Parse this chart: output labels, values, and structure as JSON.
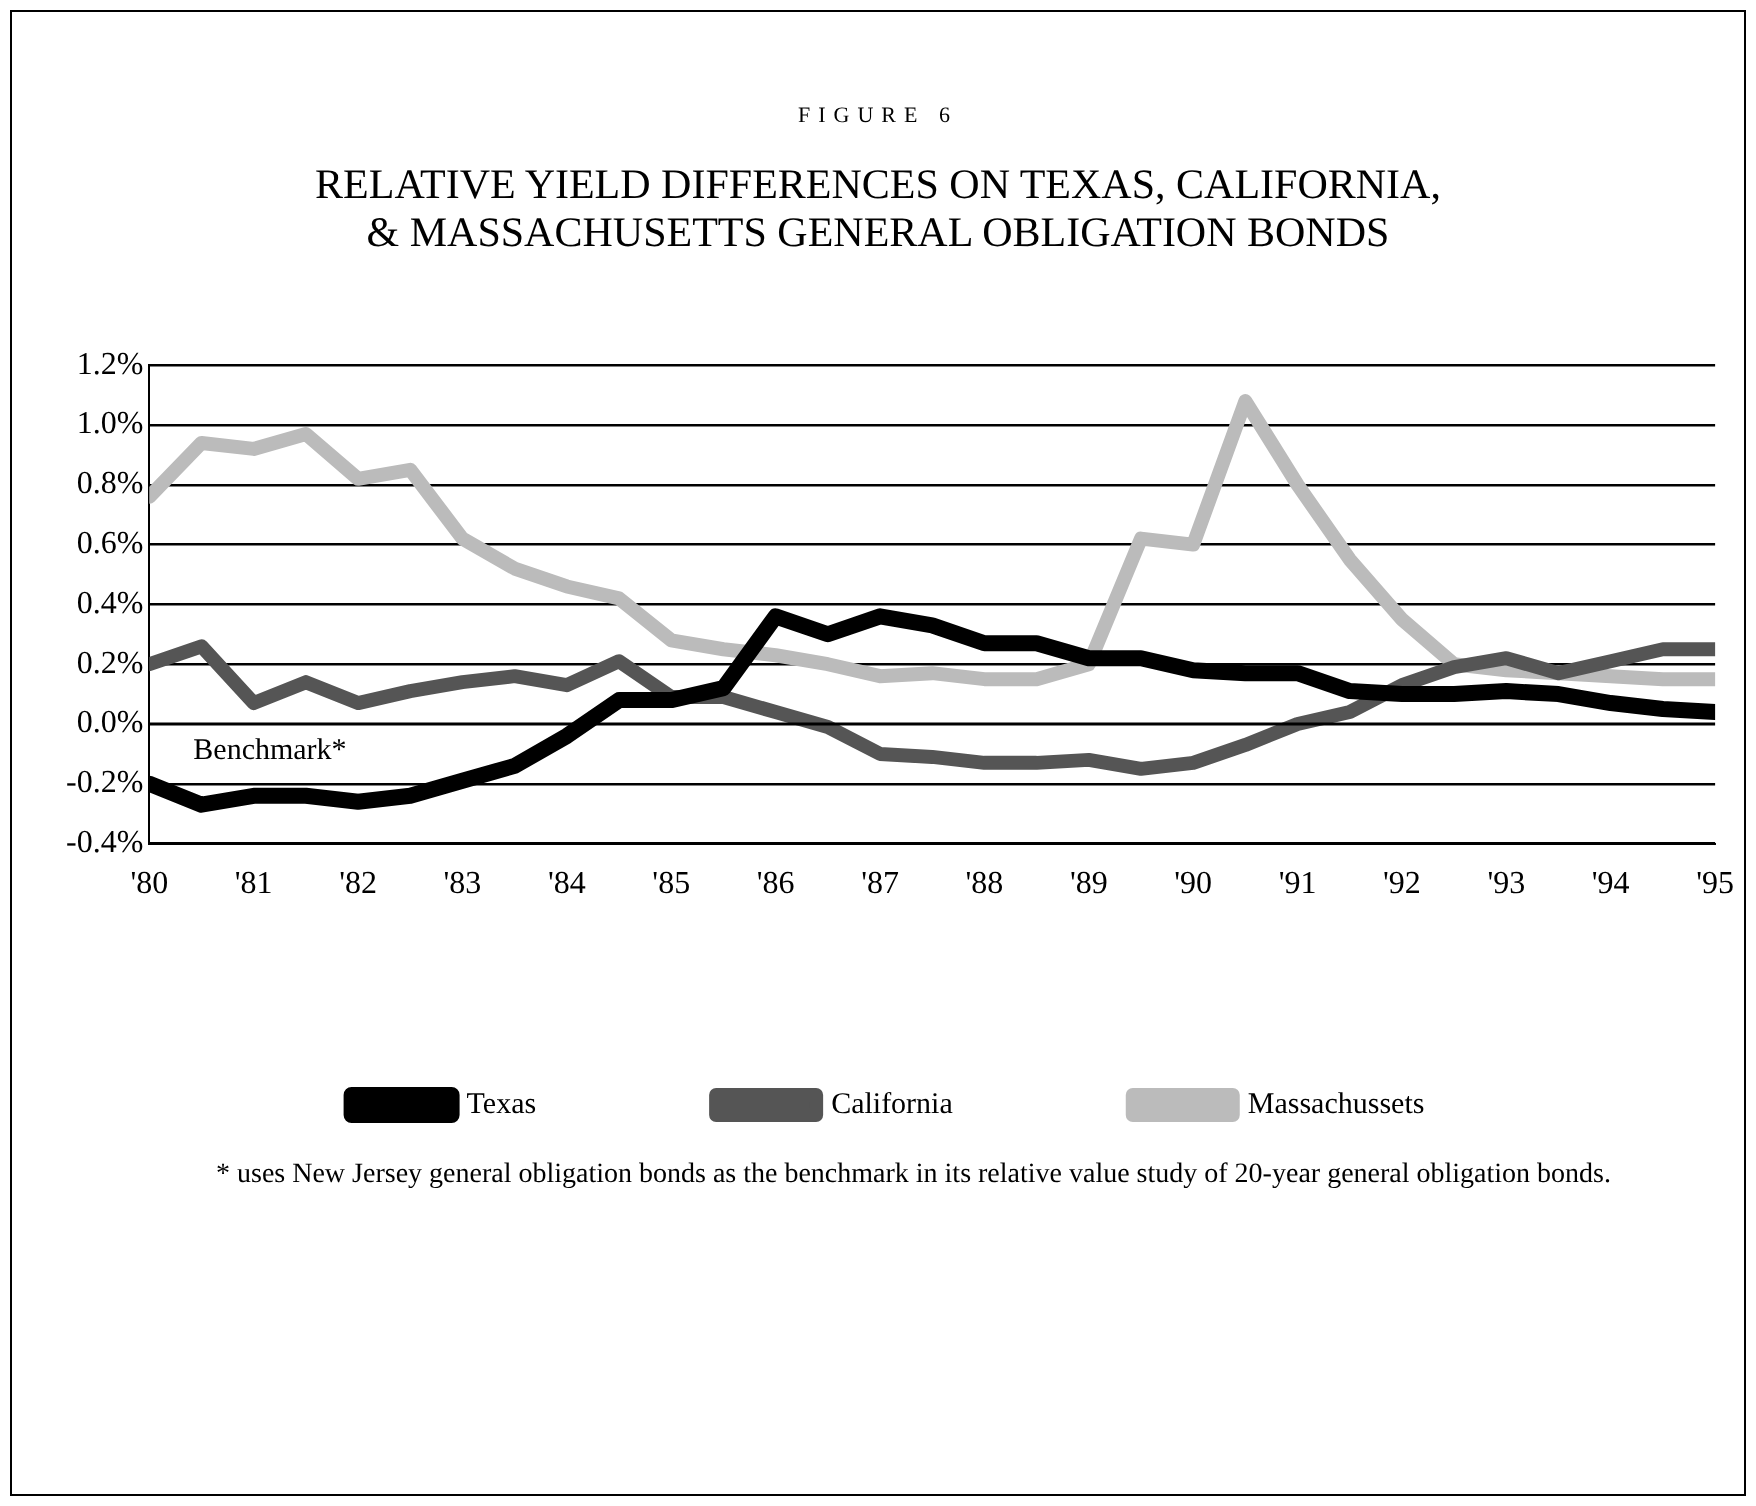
{
  "chart_data": {
    "type": "line",
    "subtitle": "FIGURE 6",
    "title": "RELATIVE YIELD DIFFERENCES ON TEXAS, CALIFORNIA,\n& MASSACHUSETTS GENERAL OBLIGATION BONDS",
    "x": [
      1980,
      1980.5,
      1981,
      1981.5,
      1982,
      1982.5,
      1983,
      1983.5,
      1984,
      1984.5,
      1985,
      1985.5,
      1986,
      1986.5,
      1987,
      1987.5,
      1988,
      1988.5,
      1989,
      1989.5,
      1990,
      1990.5,
      1991,
      1991.5,
      1992,
      1992.5,
      1993,
      1993.5,
      1994,
      1994.5,
      1995
    ],
    "series": [
      {
        "name": "Texas",
        "color": "#000000",
        "values": [
          -0.2,
          -0.27,
          -0.24,
          -0.24,
          -0.26,
          -0.24,
          -0.19,
          -0.14,
          -0.04,
          0.08,
          0.08,
          0.12,
          0.36,
          0.3,
          0.36,
          0.33,
          0.27,
          0.27,
          0.22,
          0.22,
          0.18,
          0.17,
          0.17,
          0.11,
          0.1,
          0.1,
          0.11,
          0.1,
          0.07,
          0.05,
          0.04
        ]
      },
      {
        "name": "California",
        "color": "#555555",
        "values": [
          0.2,
          0.26,
          0.07,
          0.14,
          0.07,
          0.11,
          0.14,
          0.16,
          0.13,
          0.21,
          0.09,
          0.09,
          0.04,
          -0.01,
          -0.1,
          -0.11,
          -0.13,
          -0.13,
          -0.12,
          -0.15,
          -0.13,
          -0.07,
          0.0,
          0.04,
          0.13,
          0.19,
          0.22,
          0.17,
          0.21,
          0.25,
          0.25
        ]
      },
      {
        "name": "Massachussets",
        "color": "#bbbbbb",
        "values": [
          0.76,
          0.94,
          0.92,
          0.97,
          0.82,
          0.85,
          0.62,
          0.52,
          0.46,
          0.42,
          0.28,
          0.25,
          0.23,
          0.2,
          0.16,
          0.17,
          0.15,
          0.15,
          0.2,
          0.62,
          0.6,
          1.08,
          0.8,
          0.55,
          0.35,
          0.2,
          0.18,
          0.17,
          0.16,
          0.15,
          0.15
        ]
      }
    ],
    "xlim": [
      1980,
      1995
    ],
    "xticks": [
      {
        "value": 1980,
        "label": "'80"
      },
      {
        "value": 1981,
        "label": "'81"
      },
      {
        "value": 1982,
        "label": "'82"
      },
      {
        "value": 1983,
        "label": "'83"
      },
      {
        "value": 1984,
        "label": "'84"
      },
      {
        "value": 1985,
        "label": "'85"
      },
      {
        "value": 1986,
        "label": "'86"
      },
      {
        "value": 1987,
        "label": "'87"
      },
      {
        "value": 1988,
        "label": "'88"
      },
      {
        "value": 1989,
        "label": "'89"
      },
      {
        "value": 1990,
        "label": "'90"
      },
      {
        "value": 1991,
        "label": "'91"
      },
      {
        "value": 1992,
        "label": "'92"
      },
      {
        "value": 1993,
        "label": "'93"
      },
      {
        "value": 1994,
        "label": "'94"
      },
      {
        "value": 1995,
        "label": "'95"
      }
    ],
    "ylim": [
      -0.4,
      1.2
    ],
    "yticks": [
      {
        "value": -0.4,
        "label": "-0.4%"
      },
      {
        "value": -0.2,
        "label": "-0.2%"
      },
      {
        "value": 0,
        "label": "0.0%"
      },
      {
        "value": 0.2,
        "label": "0.2%"
      },
      {
        "value": 0.4,
        "label": "0.4%"
      },
      {
        "value": 0.6,
        "label": "0.6%"
      },
      {
        "value": 0.8,
        "label": "0.8%"
      },
      {
        "value": 1.0,
        "label": "1.0%"
      },
      {
        "value": 1.2,
        "label": "1.2%"
      }
    ],
    "grid": "y",
    "legend": "bottom",
    "marker": "none",
    "line_style": "solid",
    "ref_lines": [
      {
        "axis": "y",
        "value": 0,
        "label": "Benchmark*",
        "color": "#000000"
      }
    ],
    "annotations": [
      "* uses New Jersey general obligation bonds as the benchmark in its relative value study of 20-year general obligation bonds."
    ]
  }
}
